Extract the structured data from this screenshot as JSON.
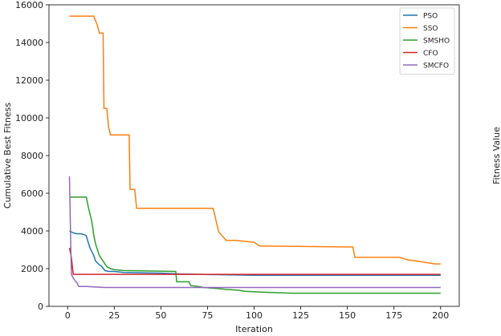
{
  "chart_data": {
    "type": "line",
    "xlabel": "Iteration",
    "ylabel": "Cumulative Best Fitness",
    "right_label": "Fitness Value",
    "xlim": [
      -10,
      210
    ],
    "ylim": [
      0,
      16000
    ],
    "xticks": [
      0,
      25,
      50,
      75,
      100,
      125,
      150,
      175,
      200
    ],
    "yticks": [
      0,
      2000,
      4000,
      6000,
      8000,
      10000,
      12000,
      14000,
      16000
    ],
    "legend_position": "top-right",
    "series": [
      {
        "name": "PSO",
        "color": "#1f77b4",
        "x": [
          1,
          2,
          3,
          5,
          7,
          9,
          10,
          11,
          12,
          13,
          14,
          15,
          16,
          17,
          18,
          20,
          22,
          25,
          30,
          40,
          50,
          60,
          80,
          100,
          150,
          200
        ],
        "y": [
          4000,
          3950,
          3900,
          3850,
          3850,
          3800,
          3750,
          3400,
          3100,
          2900,
          2700,
          2400,
          2300,
          2200,
          2150,
          1900,
          1850,
          1850,
          1800,
          1780,
          1760,
          1720,
          1680,
          1650,
          1650,
          1650
        ]
      },
      {
        "name": "SSO",
        "color": "#ff7f0e",
        "x": [
          1,
          14,
          16,
          17,
          19,
          19.5,
          21,
          22,
          23,
          25,
          33,
          33.5,
          36,
          37,
          78,
          81,
          85,
          90,
          100,
          103,
          104,
          153,
          154,
          178,
          183,
          184,
          197,
          200
        ],
        "y": [
          15400,
          15400,
          14900,
          14500,
          14500,
          10500,
          10500,
          9500,
          9100,
          9100,
          9100,
          6200,
          6200,
          5200,
          5200,
          3950,
          3500,
          3500,
          3400,
          3200,
          3200,
          3150,
          2600,
          2600,
          2450,
          2450,
          2250,
          2250
        ]
      },
      {
        "name": "SMSHO",
        "color": "#2ca02c",
        "x": [
          1,
          5,
          10,
          11,
          13,
          14,
          15,
          16,
          17,
          19,
          21,
          23,
          25,
          30,
          58,
          58.5,
          65,
          66,
          70,
          73,
          80,
          85,
          92,
          95,
          105,
          120,
          140,
          200
        ],
        "y": [
          5800,
          5800,
          5800,
          5300,
          4500,
          3800,
          3300,
          3000,
          2700,
          2400,
          2100,
          2000,
          1950,
          1900,
          1850,
          1300,
          1300,
          1100,
          1050,
          1000,
          950,
          900,
          850,
          800,
          750,
          700,
          700,
          700
        ]
      },
      {
        "name": "CFO",
        "color": "#d62728",
        "x": [
          1,
          2,
          3,
          200
        ],
        "y": [
          3100,
          2600,
          1700,
          1700
        ]
      },
      {
        "name": "SMCFO",
        "color": "#9467bd",
        "x": [
          1,
          1.5,
          2,
          3,
          5,
          6,
          10,
          20,
          50,
          200
        ],
        "y": [
          6900,
          4200,
          1700,
          1500,
          1250,
          1050,
          1050,
          1000,
          1000,
          1000
        ]
      }
    ]
  }
}
